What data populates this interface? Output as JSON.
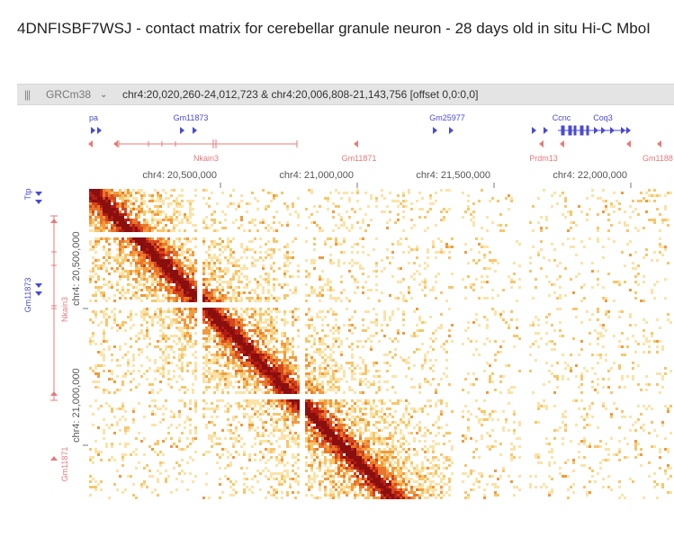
{
  "title": "4DNFISBF7WSJ - contact matrix for cerebellar granule neuron - 28 days old in situ Hi-C MboI",
  "toolbar": {
    "drag_handle": "|||",
    "assembly": "GRCm38",
    "locus": "chr4:20,020,260-24,012,723 & chr4:20,006,808-21,143,756 [offset 0,0:0,0]"
  },
  "colors": {
    "plus_strand": "#4a4ad6",
    "minus_strand": "#e8797b",
    "heatmap_low": "#f7c66b",
    "heatmap_mid": "#e8762a",
    "heatmap_high": "#8a0f0f",
    "toolbar_bg": "#e4e4e4"
  },
  "top_genes": [
    {
      "label": "pa",
      "strand": "+"
    },
    {
      "label": "Gm11873",
      "strand": "+"
    },
    {
      "label": "Gm25977",
      "strand": "+"
    },
    {
      "label": "Ccnc",
      "strand": "+"
    },
    {
      "label": "Coq3",
      "strand": "+"
    },
    {
      "label": "Nkain3",
      "strand": "-"
    },
    {
      "label": "Gm11871",
      "strand": "-"
    },
    {
      "label": "Prdm13",
      "strand": "-"
    },
    {
      "label": "Gm1188",
      "strand": "-"
    }
  ],
  "top_axis_ticks": [
    "chr4: 20,500,000",
    "chr4: 21,000,000",
    "chr4: 21,500,000",
    "chr4: 22,000,000"
  ],
  "left_genes": [
    {
      "label": "Ttp",
      "strand": "+"
    },
    {
      "label": "Gm11873",
      "strand": "+"
    },
    {
      "label": "Nkain3",
      "strand": "-"
    },
    {
      "label": "Gm11871",
      "strand": "-"
    }
  ],
  "left_axis_ticks": [
    "chr4: 20,500,000",
    "chr4: 21,000,000"
  ]
}
